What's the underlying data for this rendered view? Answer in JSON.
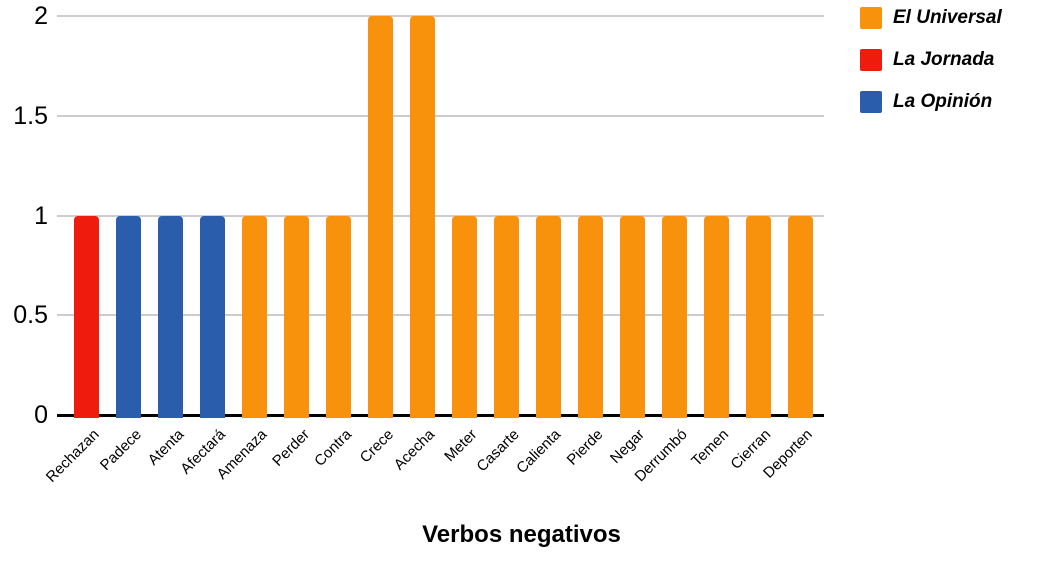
{
  "chart_data": {
    "type": "bar",
    "title": "",
    "xlabel": "Verbos negativos",
    "ylabel": "",
    "ylim": [
      0,
      2
    ],
    "yticks": [
      0,
      0.5,
      1,
      1.5,
      2
    ],
    "grid": true,
    "legend_position": "top-right",
    "categories": [
      "Rechazan",
      "Padece",
      "Atenta",
      "Afectará",
      "Amenaza",
      "Perder",
      "Contra",
      "Crece",
      "Acecha",
      "Meter",
      "Casarte",
      "Calienta",
      "Pierde",
      "Negar",
      "Derrumbó",
      "Temen",
      "Cierran",
      "Deporten"
    ],
    "values": [
      1,
      1,
      1,
      1,
      1,
      1,
      1,
      2,
      2,
      1,
      1,
      1,
      1,
      1,
      1,
      1,
      1,
      1
    ],
    "series_by_bar": [
      "La Jornada",
      "La Opinión",
      "La Opinión",
      "La Opinión",
      "El Universal",
      "El Universal",
      "El Universal",
      "El Universal",
      "El Universal",
      "El Universal",
      "El Universal",
      "El Universal",
      "El Universal",
      "El Universal",
      "El Universal",
      "El Universal",
      "El Universal",
      "El Universal"
    ],
    "legend": [
      {
        "name": "El Universal",
        "color": "#F8910B"
      },
      {
        "name": "La Jornada",
        "color": "#EF1C0D"
      },
      {
        "name": "La Opinión",
        "color": "#2A5DAB"
      }
    ],
    "colors": {
      "gridline": "#CCCCCC",
      "axis": "#000000",
      "text": "#000000"
    }
  }
}
